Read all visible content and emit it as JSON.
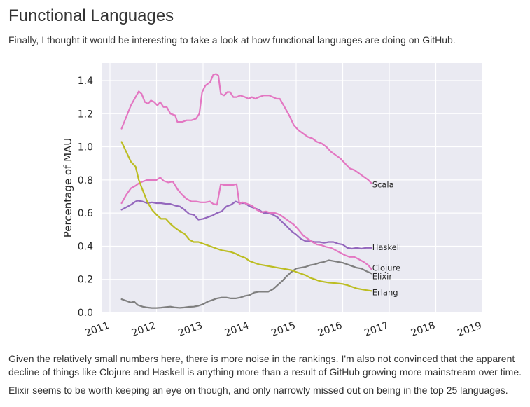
{
  "heading": "Functional Languages",
  "intro": "Finally, I thought it would be interesting to take a look at how functional languages are doing on GitHub.",
  "paragraph1": "Given the relatively small numbers here, there is more noise in the rankings. I'm also not convinced that the apparent decline of things like Clojure and Haskell is anything more than a result of GitHub growing more mainstream over time.",
  "paragraph2": "Elixir seems to be worth keeping an eye on though, and only narrowly missed out on being in the top 25 languages.",
  "chart_data": {
    "type": "line",
    "title": "",
    "xlabel": "",
    "ylabel": "Percentage of MAU",
    "xlim": [
      2011,
      2019.05
    ],
    "ylim": [
      0,
      1.5
    ],
    "x_ticks": [
      "2011",
      "2012",
      "2013",
      "2014",
      "2015",
      "2016",
      "2017",
      "2018",
      "2019"
    ],
    "y_ticks": [
      "0.0",
      "0.2",
      "0.4",
      "0.6",
      "0.8",
      "1.0",
      "1.2",
      "1.4"
    ],
    "grid": true,
    "background": "#eaeaf2",
    "legend": "labels at line ends",
    "series": [
      {
        "name": "Scala",
        "color": "#e377c2",
        "points": [
          [
            2011.25,
            1.11
          ],
          [
            2011.35,
            1.18
          ],
          [
            2011.45,
            1.25
          ],
          [
            2011.55,
            1.3
          ],
          [
            2011.62,
            1.335
          ],
          [
            2011.68,
            1.32
          ],
          [
            2011.75,
            1.27
          ],
          [
            2011.82,
            1.26
          ],
          [
            2011.88,
            1.28
          ],
          [
            2011.95,
            1.27
          ],
          [
            2012.02,
            1.25
          ],
          [
            2012.08,
            1.27
          ],
          [
            2012.15,
            1.24
          ],
          [
            2012.22,
            1.24
          ],
          [
            2012.3,
            1.2
          ],
          [
            2012.4,
            1.19
          ],
          [
            2012.45,
            1.15
          ],
          [
            2012.55,
            1.15
          ],
          [
            2012.65,
            1.16
          ],
          [
            2012.75,
            1.16
          ],
          [
            2012.85,
            1.17
          ],
          [
            2012.92,
            1.2
          ],
          [
            2012.98,
            1.33
          ],
          [
            2013.05,
            1.37
          ],
          [
            2013.15,
            1.39
          ],
          [
            2013.22,
            1.435
          ],
          [
            2013.28,
            1.44
          ],
          [
            2013.33,
            1.43
          ],
          [
            2013.38,
            1.32
          ],
          [
            2013.45,
            1.31
          ],
          [
            2013.52,
            1.33
          ],
          [
            2013.58,
            1.33
          ],
          [
            2013.65,
            1.3
          ],
          [
            2013.72,
            1.3
          ],
          [
            2013.8,
            1.31
          ],
          [
            2013.9,
            1.3
          ],
          [
            2013.98,
            1.29
          ],
          [
            2014.05,
            1.3
          ],
          [
            2014.12,
            1.29
          ],
          [
            2014.2,
            1.3
          ],
          [
            2014.3,
            1.31
          ],
          [
            2014.42,
            1.31
          ],
          [
            2014.5,
            1.3
          ],
          [
            2014.58,
            1.29
          ],
          [
            2014.65,
            1.29
          ],
          [
            2014.75,
            1.24
          ],
          [
            2014.85,
            1.19
          ],
          [
            2014.95,
            1.13
          ],
          [
            2015.05,
            1.1
          ],
          [
            2015.15,
            1.08
          ],
          [
            2015.25,
            1.06
          ],
          [
            2015.35,
            1.05
          ],
          [
            2015.45,
            1.03
          ],
          [
            2015.55,
            1.02
          ],
          [
            2015.65,
            1.0
          ],
          [
            2015.75,
            0.97
          ],
          [
            2015.85,
            0.95
          ],
          [
            2015.95,
            0.93
          ],
          [
            2016.05,
            0.9
          ],
          [
            2016.15,
            0.87
          ],
          [
            2016.25,
            0.86
          ],
          [
            2016.35,
            0.84
          ],
          [
            2016.45,
            0.82
          ],
          [
            2016.55,
            0.8
          ],
          [
            2016.62,
            0.78
          ]
        ]
      },
      {
        "name": "Haskell",
        "color": "#9467bd",
        "points": [
          [
            2011.25,
            0.62
          ],
          [
            2011.35,
            0.635
          ],
          [
            2011.45,
            0.65
          ],
          [
            2011.55,
            0.67
          ],
          [
            2011.6,
            0.675
          ],
          [
            2011.7,
            0.67
          ],
          [
            2011.8,
            0.66
          ],
          [
            2011.9,
            0.665
          ],
          [
            2012.0,
            0.66
          ],
          [
            2012.1,
            0.66
          ],
          [
            2012.2,
            0.655
          ],
          [
            2012.3,
            0.655
          ],
          [
            2012.4,
            0.645
          ],
          [
            2012.5,
            0.64
          ],
          [
            2012.6,
            0.62
          ],
          [
            2012.7,
            0.595
          ],
          [
            2012.8,
            0.59
          ],
          [
            2012.9,
            0.56
          ],
          [
            2013.0,
            0.565
          ],
          [
            2013.1,
            0.575
          ],
          [
            2013.2,
            0.585
          ],
          [
            2013.3,
            0.6
          ],
          [
            2013.4,
            0.61
          ],
          [
            2013.5,
            0.64
          ],
          [
            2013.6,
            0.65
          ],
          [
            2013.7,
            0.67
          ],
          [
            2013.8,
            0.66
          ],
          [
            2013.9,
            0.66
          ],
          [
            2014.0,
            0.64
          ],
          [
            2014.1,
            0.63
          ],
          [
            2014.2,
            0.62
          ],
          [
            2014.3,
            0.6
          ],
          [
            2014.4,
            0.6
          ],
          [
            2014.5,
            0.59
          ],
          [
            2014.6,
            0.575
          ],
          [
            2014.7,
            0.545
          ],
          [
            2014.8,
            0.52
          ],
          [
            2014.9,
            0.49
          ],
          [
            2015.0,
            0.47
          ],
          [
            2015.1,
            0.445
          ],
          [
            2015.2,
            0.43
          ],
          [
            2015.3,
            0.43
          ],
          [
            2015.4,
            0.425
          ],
          [
            2015.5,
            0.425
          ],
          [
            2015.6,
            0.42
          ],
          [
            2015.7,
            0.425
          ],
          [
            2015.8,
            0.425
          ],
          [
            2015.9,
            0.415
          ],
          [
            2016.0,
            0.41
          ],
          [
            2016.1,
            0.39
          ],
          [
            2016.2,
            0.385
          ],
          [
            2016.3,
            0.39
          ],
          [
            2016.4,
            0.385
          ],
          [
            2016.5,
            0.39
          ],
          [
            2016.62,
            0.39
          ]
        ]
      },
      {
        "name": "Clojure",
        "color": "#e377c2",
        "points": [
          [
            2011.25,
            0.66
          ],
          [
            2011.35,
            0.71
          ],
          [
            2011.45,
            0.75
          ],
          [
            2011.55,
            0.765
          ],
          [
            2011.62,
            0.78
          ],
          [
            2011.7,
            0.79
          ],
          [
            2011.8,
            0.8
          ],
          [
            2011.9,
            0.8
          ],
          [
            2012.0,
            0.8
          ],
          [
            2012.08,
            0.815
          ],
          [
            2012.15,
            0.795
          ],
          [
            2012.25,
            0.785
          ],
          [
            2012.35,
            0.79
          ],
          [
            2012.45,
            0.745
          ],
          [
            2012.55,
            0.71
          ],
          [
            2012.65,
            0.685
          ],
          [
            2012.75,
            0.67
          ],
          [
            2012.85,
            0.67
          ],
          [
            2012.95,
            0.665
          ],
          [
            2013.05,
            0.665
          ],
          [
            2013.15,
            0.67
          ],
          [
            2013.22,
            0.655
          ],
          [
            2013.3,
            0.65
          ],
          [
            2013.38,
            0.775
          ],
          [
            2013.45,
            0.77
          ],
          [
            2013.55,
            0.77
          ],
          [
            2013.65,
            0.77
          ],
          [
            2013.72,
            0.775
          ],
          [
            2013.78,
            0.655
          ],
          [
            2013.85,
            0.665
          ],
          [
            2013.95,
            0.655
          ],
          [
            2014.05,
            0.645
          ],
          [
            2014.15,
            0.62
          ],
          [
            2014.25,
            0.605
          ],
          [
            2014.35,
            0.61
          ],
          [
            2014.45,
            0.6
          ],
          [
            2014.55,
            0.6
          ],
          [
            2014.65,
            0.59
          ],
          [
            2014.75,
            0.57
          ],
          [
            2014.85,
            0.55
          ],
          [
            2014.95,
            0.53
          ],
          [
            2015.05,
            0.5
          ],
          [
            2015.15,
            0.465
          ],
          [
            2015.25,
            0.445
          ],
          [
            2015.35,
            0.425
          ],
          [
            2015.45,
            0.41
          ],
          [
            2015.55,
            0.405
          ],
          [
            2015.65,
            0.395
          ],
          [
            2015.75,
            0.39
          ],
          [
            2015.85,
            0.375
          ],
          [
            2015.95,
            0.36
          ],
          [
            2016.05,
            0.345
          ],
          [
            2016.15,
            0.335
          ],
          [
            2016.25,
            0.335
          ],
          [
            2016.35,
            0.32
          ],
          [
            2016.45,
            0.305
          ],
          [
            2016.55,
            0.285
          ],
          [
            2016.62,
            0.26
          ]
        ]
      },
      {
        "name": "Elixir",
        "color": "#7f7f7f",
        "points": [
          [
            2011.25,
            0.08
          ],
          [
            2011.35,
            0.07
          ],
          [
            2011.45,
            0.06
          ],
          [
            2011.52,
            0.065
          ],
          [
            2011.6,
            0.045
          ],
          [
            2011.7,
            0.035
          ],
          [
            2011.8,
            0.03
          ],
          [
            2011.9,
            0.027
          ],
          [
            2012.0,
            0.027
          ],
          [
            2012.1,
            0.029
          ],
          [
            2012.2,
            0.032
          ],
          [
            2012.3,
            0.035
          ],
          [
            2012.4,
            0.03
          ],
          [
            2012.5,
            0.028
          ],
          [
            2012.6,
            0.03
          ],
          [
            2012.7,
            0.034
          ],
          [
            2012.8,
            0.035
          ],
          [
            2012.9,
            0.04
          ],
          [
            2013.0,
            0.05
          ],
          [
            2013.1,
            0.065
          ],
          [
            2013.2,
            0.075
          ],
          [
            2013.3,
            0.085
          ],
          [
            2013.4,
            0.09
          ],
          [
            2013.5,
            0.09
          ],
          [
            2013.6,
            0.085
          ],
          [
            2013.7,
            0.085
          ],
          [
            2013.8,
            0.09
          ],
          [
            2013.9,
            0.1
          ],
          [
            2014.0,
            0.105
          ],
          [
            2014.1,
            0.12
          ],
          [
            2014.2,
            0.125
          ],
          [
            2014.3,
            0.125
          ],
          [
            2014.4,
            0.125
          ],
          [
            2014.5,
            0.14
          ],
          [
            2014.6,
            0.165
          ],
          [
            2014.7,
            0.19
          ],
          [
            2014.8,
            0.22
          ],
          [
            2014.9,
            0.245
          ],
          [
            2015.0,
            0.265
          ],
          [
            2015.1,
            0.27
          ],
          [
            2015.2,
            0.275
          ],
          [
            2015.3,
            0.285
          ],
          [
            2015.4,
            0.29
          ],
          [
            2015.5,
            0.3
          ],
          [
            2015.6,
            0.305
          ],
          [
            2015.7,
            0.315
          ],
          [
            2015.8,
            0.31
          ],
          [
            2015.9,
            0.305
          ],
          [
            2016.0,
            0.3
          ],
          [
            2016.1,
            0.29
          ],
          [
            2016.2,
            0.28
          ],
          [
            2016.3,
            0.27
          ],
          [
            2016.4,
            0.265
          ],
          [
            2016.5,
            0.25
          ],
          [
            2016.62,
            0.235
          ]
        ]
      },
      {
        "name": "Erlang",
        "color": "#bcbd22",
        "points": [
          [
            2011.25,
            1.03
          ],
          [
            2011.35,
            0.97
          ],
          [
            2011.45,
            0.91
          ],
          [
            2011.55,
            0.88
          ],
          [
            2011.62,
            0.8
          ],
          [
            2011.7,
            0.74
          ],
          [
            2011.8,
            0.67
          ],
          [
            2011.9,
            0.62
          ],
          [
            2012.0,
            0.59
          ],
          [
            2012.1,
            0.565
          ],
          [
            2012.2,
            0.565
          ],
          [
            2012.3,
            0.535
          ],
          [
            2012.4,
            0.51
          ],
          [
            2012.5,
            0.49
          ],
          [
            2012.6,
            0.475
          ],
          [
            2012.7,
            0.44
          ],
          [
            2012.8,
            0.425
          ],
          [
            2012.9,
            0.425
          ],
          [
            2013.0,
            0.415
          ],
          [
            2013.1,
            0.405
          ],
          [
            2013.2,
            0.395
          ],
          [
            2013.3,
            0.385
          ],
          [
            2013.4,
            0.375
          ],
          [
            2013.5,
            0.37
          ],
          [
            2013.6,
            0.365
          ],
          [
            2013.7,
            0.355
          ],
          [
            2013.8,
            0.34
          ],
          [
            2013.9,
            0.33
          ],
          [
            2014.0,
            0.31
          ],
          [
            2014.1,
            0.3
          ],
          [
            2014.2,
            0.29
          ],
          [
            2014.3,
            0.285
          ],
          [
            2014.4,
            0.28
          ],
          [
            2014.5,
            0.275
          ],
          [
            2014.6,
            0.27
          ],
          [
            2014.7,
            0.265
          ],
          [
            2014.8,
            0.26
          ],
          [
            2014.9,
            0.255
          ],
          [
            2015.0,
            0.245
          ],
          [
            2015.1,
            0.235
          ],
          [
            2015.2,
            0.225
          ],
          [
            2015.3,
            0.21
          ],
          [
            2015.4,
            0.2
          ],
          [
            2015.5,
            0.19
          ],
          [
            2015.6,
            0.185
          ],
          [
            2015.7,
            0.18
          ],
          [
            2015.8,
            0.178
          ],
          [
            2015.9,
            0.175
          ],
          [
            2016.0,
            0.172
          ],
          [
            2016.1,
            0.165
          ],
          [
            2016.2,
            0.155
          ],
          [
            2016.3,
            0.145
          ],
          [
            2016.4,
            0.14
          ],
          [
            2016.5,
            0.135
          ],
          [
            2016.62,
            0.13
          ]
        ]
      }
    ]
  }
}
